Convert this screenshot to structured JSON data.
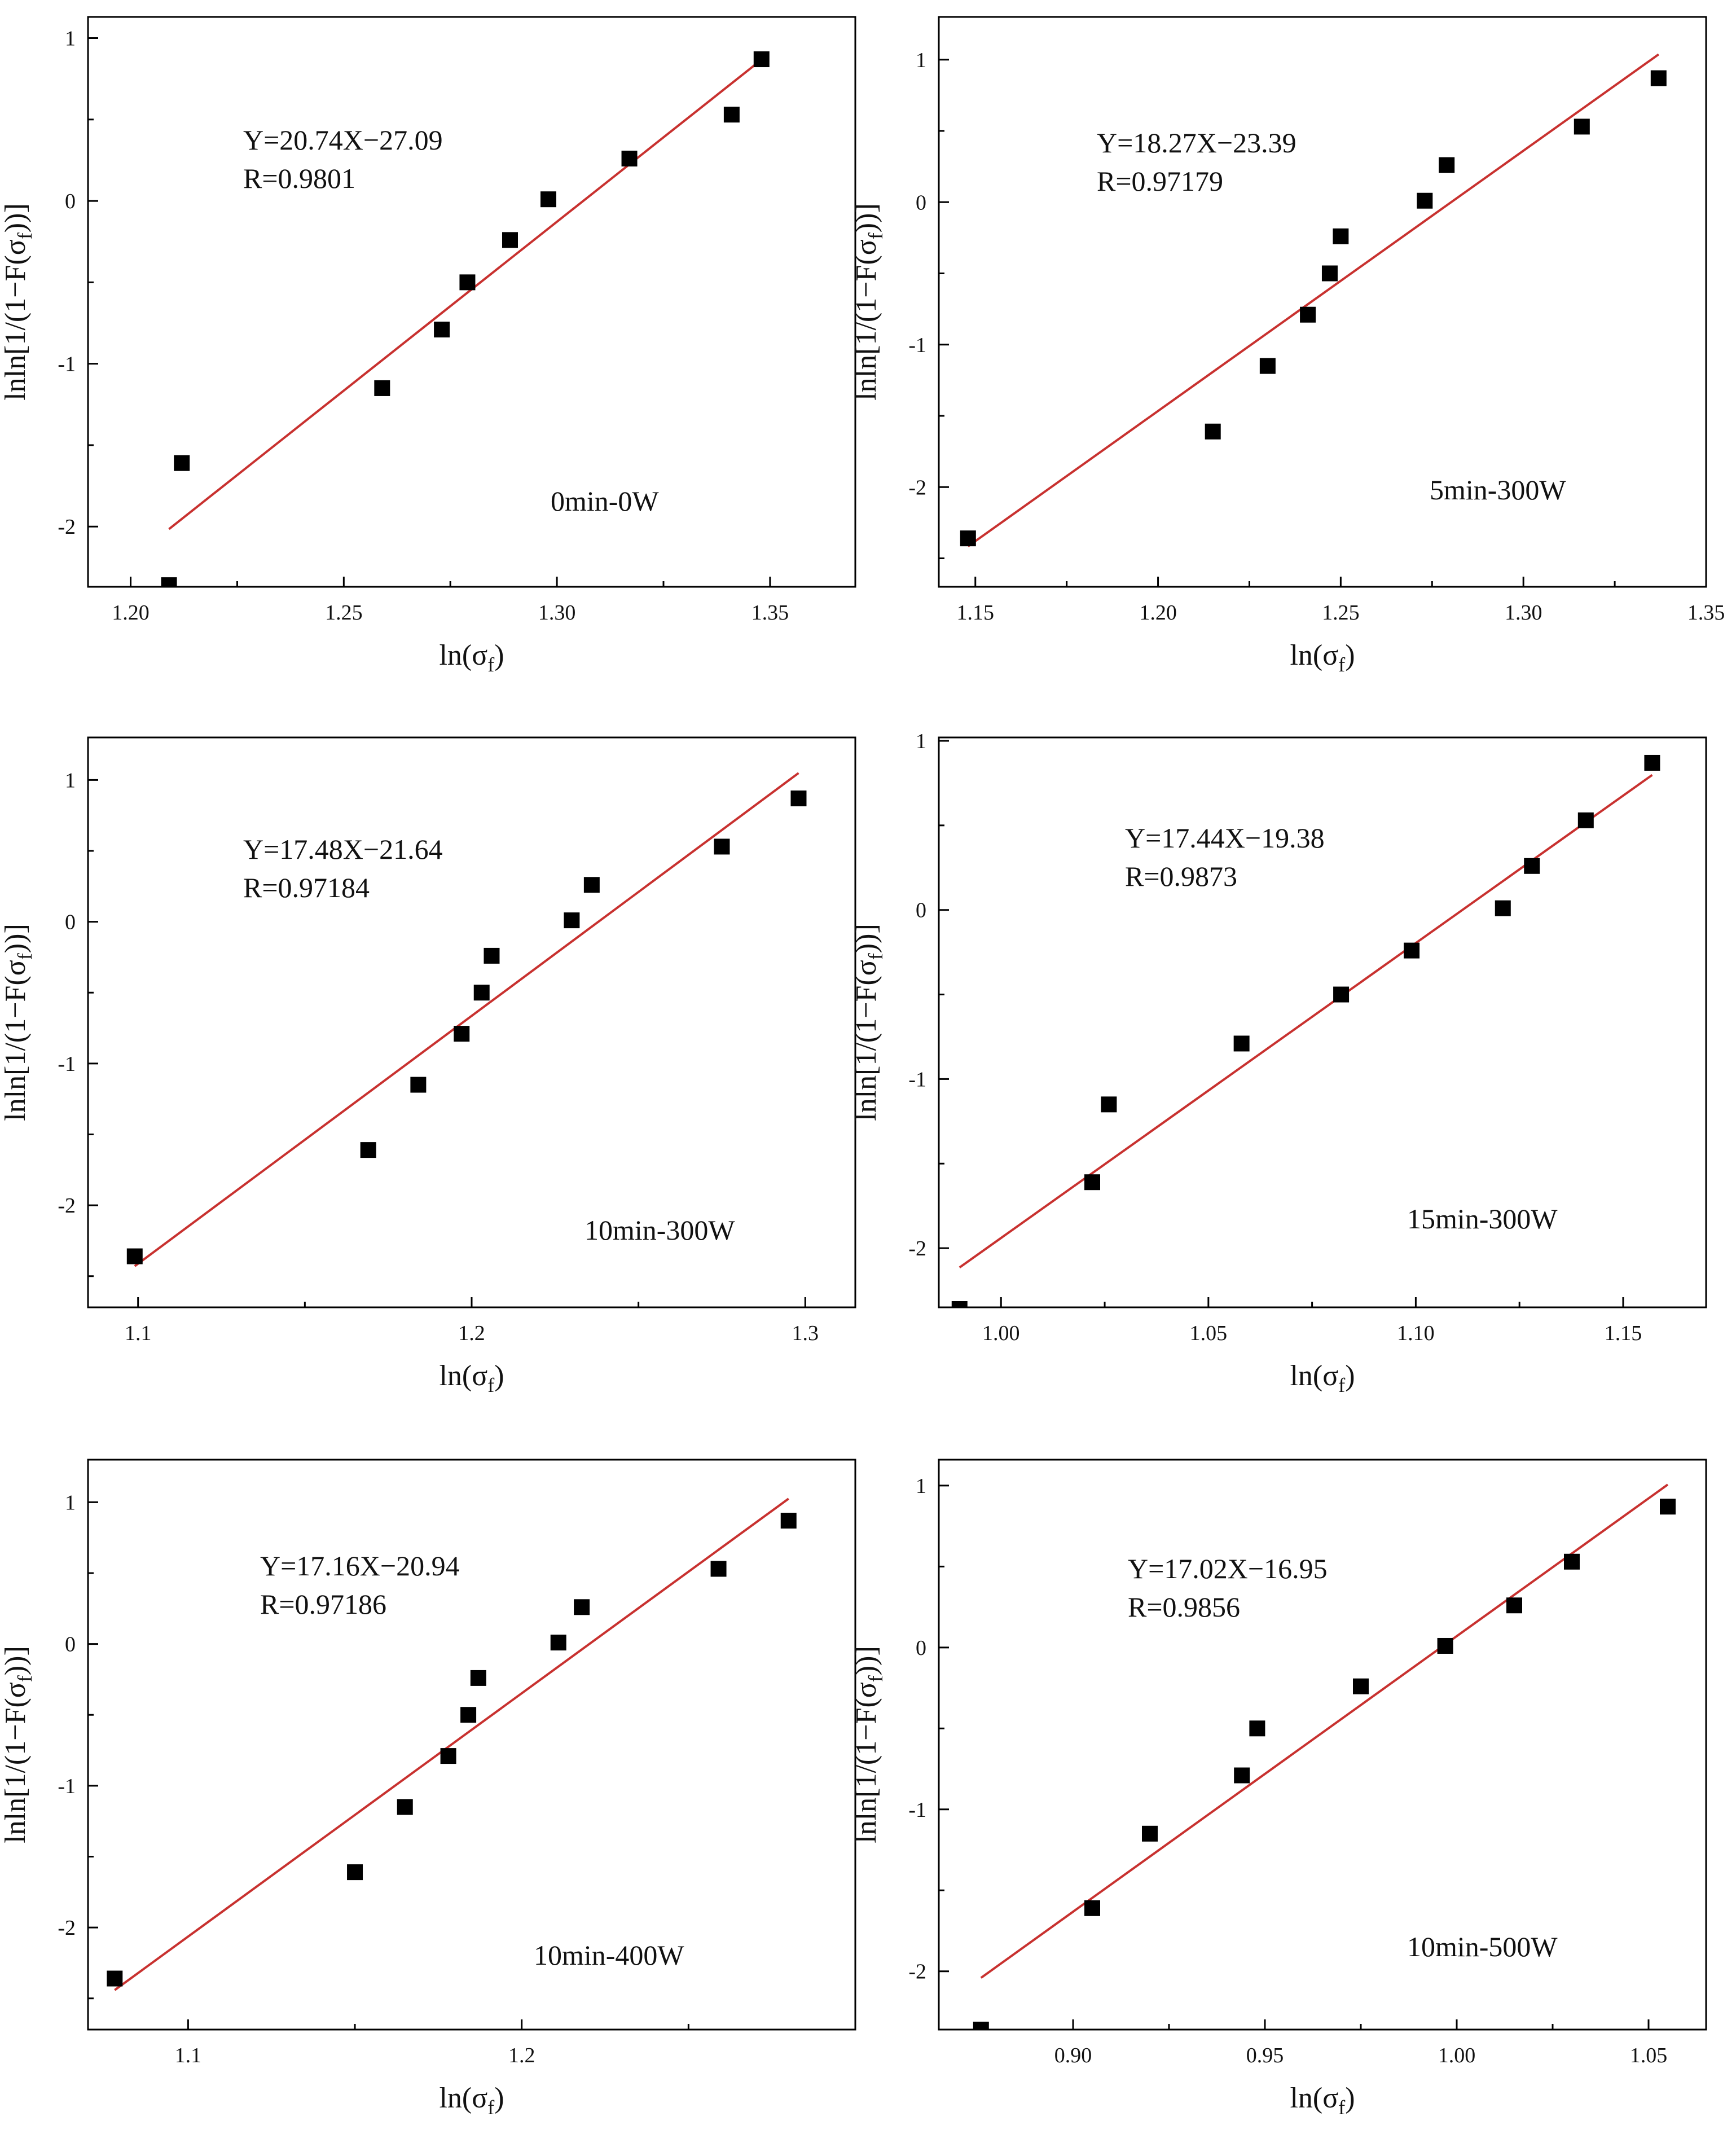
{
  "figure": {
    "colors": {
      "fit_line": "#c8312f",
      "points": "#000000",
      "axes": "#000000",
      "background": "#ffffff"
    },
    "x_axis_label": "ln(σ",
    "x_axis_label_subscript": "f",
    "y_axis_label": "lnln[1/(1−F(σ",
    "y_axis_label_subscript": "f",
    "y_axis_label_end": "))]"
  },
  "chart_data": [
    {
      "type": "scatter",
      "title": "0min-0W",
      "equation": "Y=20.74X−27.09",
      "r_value": "R=0.9801",
      "xlabel": "ln(σf)",
      "ylabel": "lnln[1/(1−F(σf))]",
      "xlim": [
        1.19,
        1.37
      ],
      "ylim": [
        -2.37,
        1.13
      ],
      "xticks": [
        1.2,
        1.25,
        1.3,
        1.35
      ],
      "xtick_labels": [
        "1.20",
        "1.25",
        "1.30",
        "1.35"
      ],
      "yticks": [
        -2,
        -1,
        0,
        1
      ],
      "ytick_labels": [
        "-2",
        "-1",
        "0",
        "1"
      ],
      "points": [
        {
          "x": 1.209,
          "y": -2.36
        },
        {
          "x": 1.212,
          "y": -1.61
        },
        {
          "x": 1.259,
          "y": -1.15
        },
        {
          "x": 1.273,
          "y": -0.79
        },
        {
          "x": 1.279,
          "y": -0.5
        },
        {
          "x": 1.289,
          "y": -0.24
        },
        {
          "x": 1.298,
          "y": 0.01
        },
        {
          "x": 1.317,
          "y": 0.26
        },
        {
          "x": 1.341,
          "y": 0.53
        },
        {
          "x": 1.348,
          "y": 0.87
        }
      ],
      "fit": {
        "slope": 20.74,
        "intercept": -27.09,
        "x_start": 1.209,
        "x_end": 1.348
      }
    },
    {
      "type": "scatter",
      "title": "5min-300W",
      "equation": "Y=18.27X−23.39",
      "r_value": "R=0.97179",
      "xlabel": "ln(σf)",
      "ylabel": "lnln[1/(1−F(σf))]",
      "xlim": [
        1.14,
        1.35
      ],
      "ylim": [
        -2.7,
        1.3
      ],
      "xticks": [
        1.15,
        1.2,
        1.25,
        1.3,
        1.35
      ],
      "xtick_labels": [
        "1.15",
        "1.20",
        "1.25",
        "1.30",
        "1.35"
      ],
      "yticks": [
        -2,
        -1,
        0,
        1
      ],
      "ytick_labels": [
        "-2",
        "-1",
        "0",
        "1"
      ],
      "points": [
        {
          "x": 1.148,
          "y": -2.36
        },
        {
          "x": 1.215,
          "y": -1.61
        },
        {
          "x": 1.23,
          "y": -1.15
        },
        {
          "x": 1.241,
          "y": -0.79
        },
        {
          "x": 1.247,
          "y": -0.5
        },
        {
          "x": 1.25,
          "y": -0.24
        },
        {
          "x": 1.273,
          "y": 0.01
        },
        {
          "x": 1.279,
          "y": 0.26
        },
        {
          "x": 1.316,
          "y": 0.53
        },
        {
          "x": 1.337,
          "y": 0.87
        }
      ],
      "fit": {
        "slope": 18.27,
        "intercept": -23.39,
        "x_start": 1.148,
        "x_end": 1.337
      }
    },
    {
      "type": "scatter",
      "title": "10min-300W",
      "equation": "Y=17.48X−21.64",
      "r_value": "R=0.97184",
      "xlabel": "ln(σf)",
      "ylabel": "lnln[1/(1−F(σf))]",
      "xlim": [
        1.085,
        1.315
      ],
      "ylim": [
        -2.72,
        1.3
      ],
      "xticks": [
        1.1,
        1.2,
        1.3
      ],
      "xtick_labels": [
        "1.1",
        "1.2",
        "1.3"
      ],
      "yticks": [
        -2,
        -1,
        0,
        1
      ],
      "ytick_labels": [
        "-2",
        "-1",
        "0",
        "1"
      ],
      "points": [
        {
          "x": 1.099,
          "y": -2.36
        },
        {
          "x": 1.169,
          "y": -1.61
        },
        {
          "x": 1.184,
          "y": -1.15
        },
        {
          "x": 1.197,
          "y": -0.79
        },
        {
          "x": 1.203,
          "y": -0.5
        },
        {
          "x": 1.206,
          "y": -0.24
        },
        {
          "x": 1.23,
          "y": 0.01
        },
        {
          "x": 1.236,
          "y": 0.26
        },
        {
          "x": 1.275,
          "y": 0.53
        },
        {
          "x": 1.298,
          "y": 0.87
        }
      ],
      "fit": {
        "slope": 17.48,
        "intercept": -21.64,
        "x_start": 1.099,
        "x_end": 1.298
      }
    },
    {
      "type": "scatter",
      "title": "15min-300W",
      "equation": "Y=17.44X−19.38",
      "r_value": "R=0.9873",
      "xlabel": "ln(σf)",
      "ylabel": "lnln[1/(1−F(σf))]",
      "xlim": [
        0.985,
        1.17
      ],
      "ylim": [
        -2.35,
        1.02
      ],
      "xticks": [
        1.0,
        1.05,
        1.1,
        1.15
      ],
      "xtick_labels": [
        "1.00",
        "1.05",
        "1.10",
        "1.15"
      ],
      "yticks": [
        -2,
        -1,
        0,
        1
      ],
      "ytick_labels": [
        "-2",
        "-1",
        "0",
        "1"
      ],
      "points": [
        {
          "x": 0.99,
          "y": -2.36
        },
        {
          "x": 1.022,
          "y": -1.61
        },
        {
          "x": 1.026,
          "y": -1.15
        },
        {
          "x": 1.058,
          "y": -0.79
        },
        {
          "x": 1.082,
          "y": -0.5
        },
        {
          "x": 1.099,
          "y": -0.24
        },
        {
          "x": 1.121,
          "y": 0.01
        },
        {
          "x": 1.128,
          "y": 0.26
        },
        {
          "x": 1.141,
          "y": 0.53
        },
        {
          "x": 1.157,
          "y": 0.87
        }
      ],
      "fit": {
        "slope": 17.44,
        "intercept": -19.38,
        "x_start": 0.99,
        "x_end": 1.157
      }
    },
    {
      "type": "scatter",
      "title": "10min-400W",
      "equation": "Y=17.16X−20.94",
      "r_value": "R=0.97186",
      "xlabel": "ln(σf)",
      "ylabel": "lnln[1/(1−F(σf))]",
      "xlim": [
        1.07,
        1.3
      ],
      "ylim": [
        -2.72,
        1.3
      ],
      "xticks": [
        1.1,
        1.2
      ],
      "xtick_labels": [
        "1.1",
        "1.2"
      ],
      "yticks": [
        -2,
        -1,
        0,
        1
      ],
      "ytick_labels": [
        "-2",
        "-1",
        "0",
        "1"
      ],
      "points": [
        {
          "x": 1.078,
          "y": -2.36
        },
        {
          "x": 1.15,
          "y": -1.61
        },
        {
          "x": 1.165,
          "y": -1.15
        },
        {
          "x": 1.178,
          "y": -0.79
        },
        {
          "x": 1.184,
          "y": -0.5
        },
        {
          "x": 1.187,
          "y": -0.24
        },
        {
          "x": 1.211,
          "y": 0.01
        },
        {
          "x": 1.218,
          "y": 0.26
        },
        {
          "x": 1.259,
          "y": 0.53
        },
        {
          "x": 1.28,
          "y": 0.87
        }
      ],
      "fit": {
        "slope": 17.16,
        "intercept": -20.94,
        "x_start": 1.078,
        "x_end": 1.28
      }
    },
    {
      "type": "scatter",
      "title": "10min-500W",
      "equation": "Y=17.02X−16.95",
      "r_value": "R=0.9856",
      "xlabel": "ln(σf)",
      "ylabel": "lnln[1/(1−F(σf))]",
      "xlim": [
        0.865,
        1.065
      ],
      "ylim": [
        -2.36,
        1.16
      ],
      "xticks": [
        0.9,
        0.95,
        1.0,
        1.05
      ],
      "xtick_labels": [
        "0.90",
        "0.95",
        "1.00",
        "1.05"
      ],
      "yticks": [
        -2,
        -1,
        0,
        1
      ],
      "ytick_labels": [
        "-2",
        "-1",
        "0",
        "1"
      ],
      "points": [
        {
          "x": 0.876,
          "y": -2.36
        },
        {
          "x": 0.905,
          "y": -1.61
        },
        {
          "x": 0.92,
          "y": -1.15
        },
        {
          "x": 0.944,
          "y": -0.79
        },
        {
          "x": 0.948,
          "y": -0.5
        },
        {
          "x": 0.975,
          "y": -0.24
        },
        {
          "x": 0.997,
          "y": 0.01
        },
        {
          "x": 1.015,
          "y": 0.26
        },
        {
          "x": 1.03,
          "y": 0.53
        },
        {
          "x": 1.055,
          "y": 0.87
        }
      ],
      "fit": {
        "slope": 17.02,
        "intercept": -16.95,
        "x_start": 0.876,
        "x_end": 1.055
      }
    }
  ]
}
